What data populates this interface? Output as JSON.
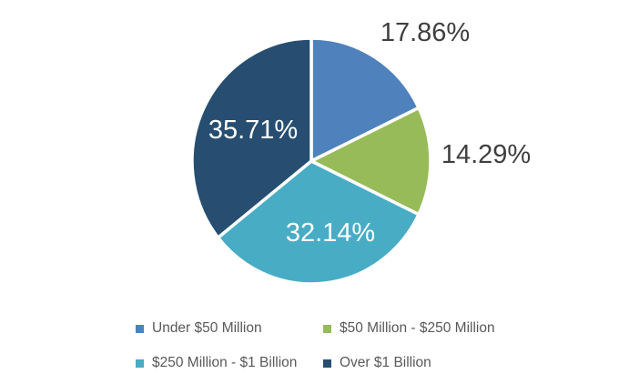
{
  "chart_data": {
    "type": "pie",
    "title": "",
    "start_angle_deg": 0,
    "direction": "clockwise",
    "legend_position": "bottom",
    "background_color": "#FFFFFF",
    "separator_color": "#FFFFFF",
    "data_label_color_outside": "#3F3F3F",
    "data_label_color_inside": "#FFFFFF",
    "legend_text_color": "#595959",
    "slices": [
      {
        "label": "Under $50 Million",
        "value": 17.86,
        "display": "17.86%",
        "color": "#4F81BD",
        "label_placement": "outside"
      },
      {
        "label": "$50 Million - $250 Million",
        "value": 14.29,
        "display": "14.29%",
        "color": "#97BB59",
        "label_placement": "outside"
      },
      {
        "label": "$250 Million - $1 Billion",
        "value": 32.14,
        "display": "32.14%",
        "color": "#48ACC5",
        "label_placement": "inside"
      },
      {
        "label": "Over $1 Billion",
        "value": 35.71,
        "display": "35.71%",
        "color": "#274E71",
        "label_placement": "inside"
      }
    ]
  }
}
